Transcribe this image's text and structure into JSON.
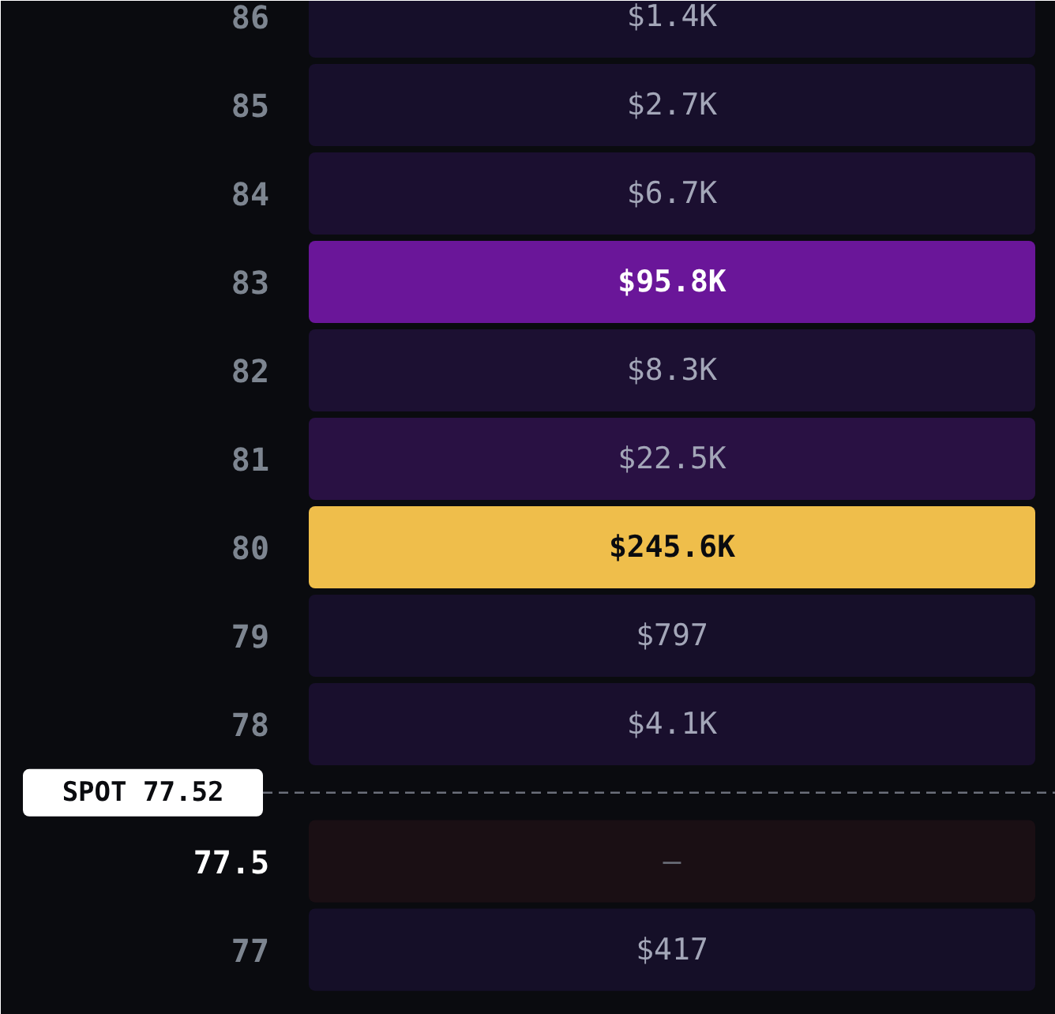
{
  "chart_data": {
    "type": "heatmap",
    "categories": [
      null
    ],
    "y_categories": [
      "86",
      "85",
      "84",
      "83",
      "82",
      "81",
      "80",
      "79",
      "78",
      "77.5",
      "77"
    ],
    "cells": [
      [
        1400
      ],
      [
        2700
      ],
      [
        6700
      ],
      [
        95800
      ],
      [
        8300
      ],
      [
        22500
      ],
      [
        245600
      ],
      [
        797
      ],
      [
        4100
      ],
      [
        null
      ],
      [
        417
      ]
    ],
    "cell_labels": [
      [
        "$1.4K"
      ],
      [
        "$2.7K"
      ],
      [
        "$6.7K"
      ],
      [
        "$95.8K"
      ],
      [
        "$8.3K"
      ],
      [
        "$22.5K"
      ],
      [
        "$245.6K"
      ],
      [
        "$797"
      ],
      [
        "$4.1K"
      ],
      [
        "—"
      ],
      [
        "$417"
      ]
    ],
    "annotations": [
      "SPOT 77.52"
    ]
  }
}
